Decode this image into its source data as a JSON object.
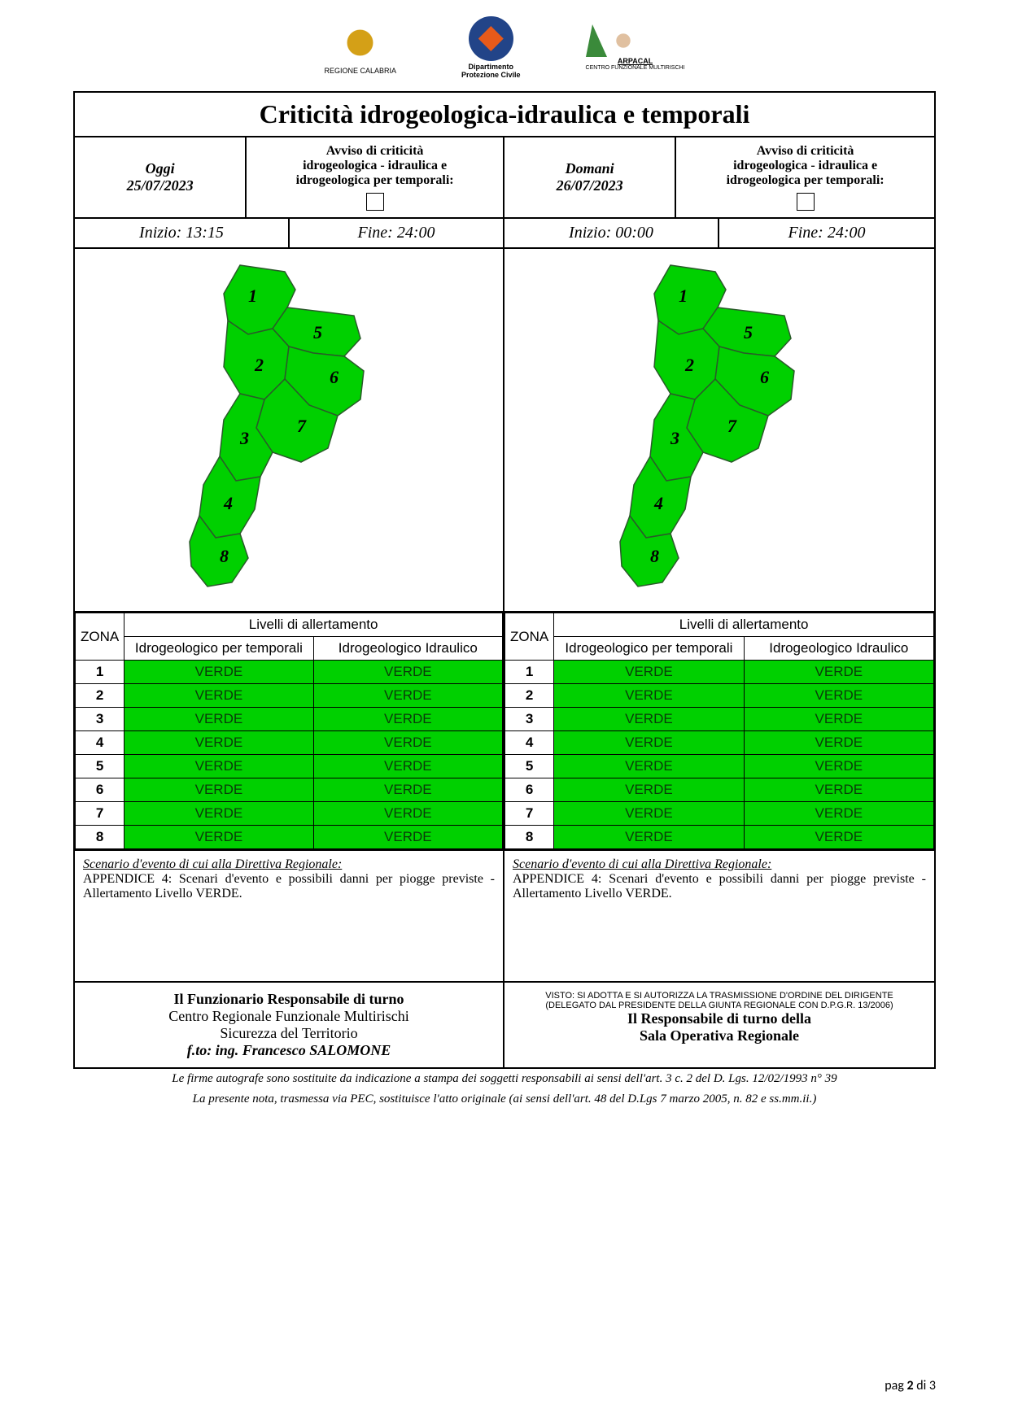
{
  "logos": {
    "calabria": "REGIONE CALABRIA",
    "protciv_l1": "Dipartimento",
    "protciv_l2": "Protezione Civile",
    "arpacal_l1": "ARPACAL",
    "arpacal_l2": "CENTRO FUNZIONALE MULTIRISCHI"
  },
  "title": "Criticità idrogeologica-idraulica e temporali",
  "today": {
    "label": "Oggi",
    "date": "25/07/2023",
    "avviso_l1": "Avviso di criticità",
    "avviso_l2": "idrogeologica - idraulica e",
    "avviso_l3": "idrogeologica per temporali:",
    "inizio_label": "Inizio: ",
    "inizio": "13:15",
    "fine_label": "Fine: ",
    "fine": "24:00"
  },
  "tomorrow": {
    "label": "Domani",
    "date": "26/07/2023",
    "avviso_l1": "Avviso di criticità",
    "avviso_l2": "idrogeologica - idraulica e",
    "avviso_l3": "idrogeologica per temporali:",
    "inizio_label": "Inizio: ",
    "inizio": "00:00",
    "fine_label": "Fine: ",
    "fine": "24:00"
  },
  "map": {
    "fill": "#00d000",
    "stroke": "#2a5a2a",
    "zones": [
      "1",
      "2",
      "3",
      "4",
      "5",
      "6",
      "7",
      "8"
    ]
  },
  "table": {
    "zona_hdr": "ZONA",
    "livelli_hdr": "Livelli di allertamento",
    "col1": "Idrogeologico per temporali",
    "col2": "Idrogeologico Idraulico",
    "rows": [
      {
        "z": "1",
        "a": "VERDE",
        "b": "VERDE"
      },
      {
        "z": "2",
        "a": "VERDE",
        "b": "VERDE"
      },
      {
        "z": "3",
        "a": "VERDE",
        "b": "VERDE"
      },
      {
        "z": "4",
        "a": "VERDE",
        "b": "VERDE"
      },
      {
        "z": "5",
        "a": "VERDE",
        "b": "VERDE"
      },
      {
        "z": "6",
        "a": "VERDE",
        "b": "VERDE"
      },
      {
        "z": "7",
        "a": "VERDE",
        "b": "VERDE"
      },
      {
        "z": "8",
        "a": "VERDE",
        "b": "VERDE"
      }
    ],
    "cell_bg": "#00d000",
    "cell_fg": "#0a3a0a"
  },
  "scenario": {
    "title": "Scenario d'evento di cui alla Direttiva Regionale:",
    "body": "APPENDICE 4: Scenari d'evento e possibili danni per piogge previste - Allertamento Livello VERDE."
  },
  "sig_left": {
    "l1": "Il Funzionario Responsabile di turno",
    "l2": "Centro Regionale Funzionale Multirischi",
    "l3": "Sicurezza del Territorio",
    "l4": "f.to:  ing. Francesco SALOMONE"
  },
  "sig_right": {
    "small1": "VISTO: SI ADOTTA E SI AUTORIZZA LA TRASMISSIONE D'ORDINE DEL DIRIGENTE",
    "small2": "(DELEGATO DAL PRESIDENTE DELLA GIUNTA REGIONALE CON D.P.G.R. 13/2006)",
    "l1": "Il Responsabile di turno della",
    "l2": "Sala Operativa Regionale"
  },
  "footnote": {
    "l1": "Le firme autografe sono sostituite da indicazione a stampa dei soggetti responsabili ai sensi dell'art. 3 c. 2 del D. Lgs. 12/02/1993 n° 39",
    "l2": "La presente nota, trasmessa via PEC, sostituisce l'atto originale (ai sensi dell'art. 48 del D.Lgs 7 marzo 2005, n. 82 e ss.mm.ii.)"
  },
  "page": {
    "pre": "pag ",
    "n": "2",
    "mid": " di ",
    "tot": "3"
  }
}
